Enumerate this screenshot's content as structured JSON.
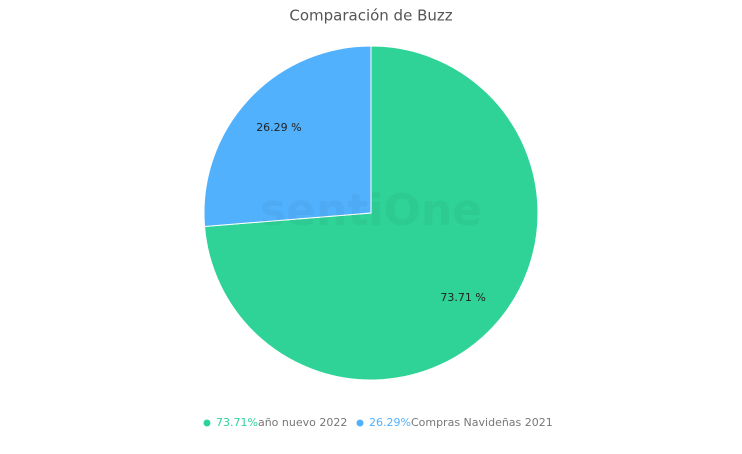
{
  "chart_data": {
    "type": "pie",
    "title": "Comparación de Buzz",
    "watermark": "sentiOne",
    "categories": [
      "año nuevo 2022",
      "Compras Navideñas 2021"
    ],
    "values": [
      73.71,
      26.29
    ],
    "value_labels": [
      "73.71 %",
      "26.29 %"
    ],
    "legend_value_labels": [
      "73.71%",
      "26.29%"
    ],
    "colors": [
      "#2fd398",
      "#52b1fd"
    ],
    "legend": "bottom"
  }
}
